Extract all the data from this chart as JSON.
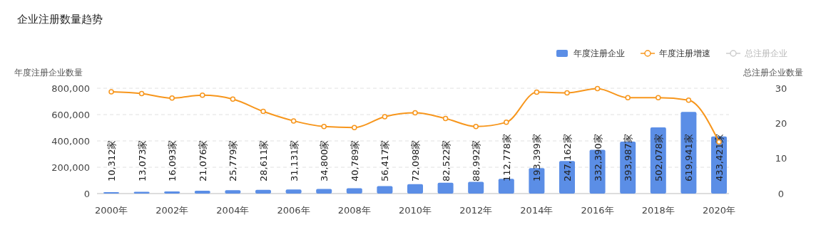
{
  "chart_data": {
    "type": "bar",
    "title": "企业注册数量趋势",
    "ylabel": "年度注册企业数量",
    "y2label": "总注册企业数量",
    "categories": [
      "2000年",
      null,
      "2002年",
      null,
      "2004年",
      null,
      "2006年",
      null,
      "2008年",
      null,
      "2010年",
      null,
      "2012年",
      null,
      "2014年",
      null,
      "2016年",
      null,
      "2018年",
      null,
      "2020年"
    ],
    "series": [
      {
        "name": "年度注册企业",
        "color": "#5b8ee6",
        "values": [
          10312,
          13073,
          16093,
          21076,
          25779,
          28611,
          31131,
          34800,
          40789,
          56417,
          72098,
          82522,
          88992,
          112778,
          193399,
          247162,
          332390,
          393987,
          502078,
          619941,
          433421
        ],
        "value_labels": [
          "10,312家",
          "13,073家",
          "16,093家",
          "21,076家",
          "25,779家",
          "28,611家",
          "31,131家",
          "34,800家",
          "40,789家",
          "56,417家",
          "72,098家",
          "82,522家",
          "88,992家",
          "112,778家",
          "193,399家",
          "247,162家",
          "332,390家",
          "393,987家",
          "502,078家",
          "619,941家",
          "433,421家"
        ]
      },
      {
        "name": "年度注册增速",
        "type": "line",
        "axis": "y2",
        "color": "#f7961c",
        "values": [
          29.0,
          28.5,
          27.2,
          28.0,
          26.9,
          23.4,
          20.7,
          19.1,
          18.8,
          21.9,
          23.0,
          21.4,
          19.1,
          20.3,
          28.9,
          28.7,
          29.9,
          27.3,
          27.3,
          26.6,
          14.7
        ]
      },
      {
        "name": "总注册企业",
        "type": "line",
        "axis": "y2",
        "color": "#cccccc",
        "values": [
          null,
          null,
          null,
          null,
          null,
          null,
          null,
          null,
          null,
          null,
          null,
          null,
          null,
          null,
          null,
          null,
          null,
          null,
          null,
          null,
          null
        ]
      }
    ],
    "ylim": [
      0,
      800000
    ],
    "yticks": [
      {
        "value": 0,
        "label": "0"
      },
      {
        "value": 200000,
        "label": "200,000"
      },
      {
        "value": 400000,
        "label": "400,000"
      },
      {
        "value": 600000,
        "label": "600,000"
      },
      {
        "value": 800000,
        "label": "800,000"
      }
    ],
    "y2lim": [
      0,
      30
    ],
    "y2ticks": [
      0,
      10,
      20,
      30
    ],
    "grid": "y",
    "legend": "top right",
    "marker": "circle",
    "line_style": "solid"
  }
}
